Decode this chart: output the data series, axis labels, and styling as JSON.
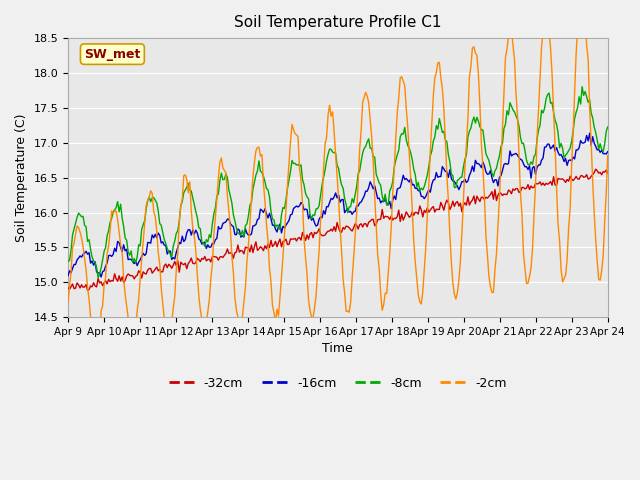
{
  "title": "Soil Temperature Profile C1",
  "xlabel": "Time",
  "ylabel": "Soil Temperature (C)",
  "ylim": [
    14.5,
    18.5
  ],
  "plot_background": "#e8e8e8",
  "fig_background": "#f0f0f0",
  "annotation_text": "SW_met",
  "annotation_color": "#8b0000",
  "annotation_bg": "#ffffcc",
  "annotation_edge": "#cc9900",
  "legend_labels": [
    "-32cm",
    "-16cm",
    "-8cm",
    "-2cm"
  ],
  "line_colors": {
    "m32": "#cc0000",
    "m16": "#0000cc",
    "m8": "#00aa00",
    "m2": "#ff8800"
  },
  "x_tick_labels": [
    "Apr 9",
    "Apr 10",
    "Apr 11",
    "Apr 12",
    "Apr 13",
    "Apr 14",
    "Apr 15",
    "Apr 16",
    "Apr 17",
    "Apr 18",
    "Apr 19",
    "Apr 20",
    "Apr 21",
    "Apr 22",
    "Apr 23",
    "Apr 24"
  ],
  "yticks": [
    14.5,
    15.0,
    15.5,
    16.0,
    16.5,
    17.0,
    17.5,
    18.0,
    18.5
  ]
}
